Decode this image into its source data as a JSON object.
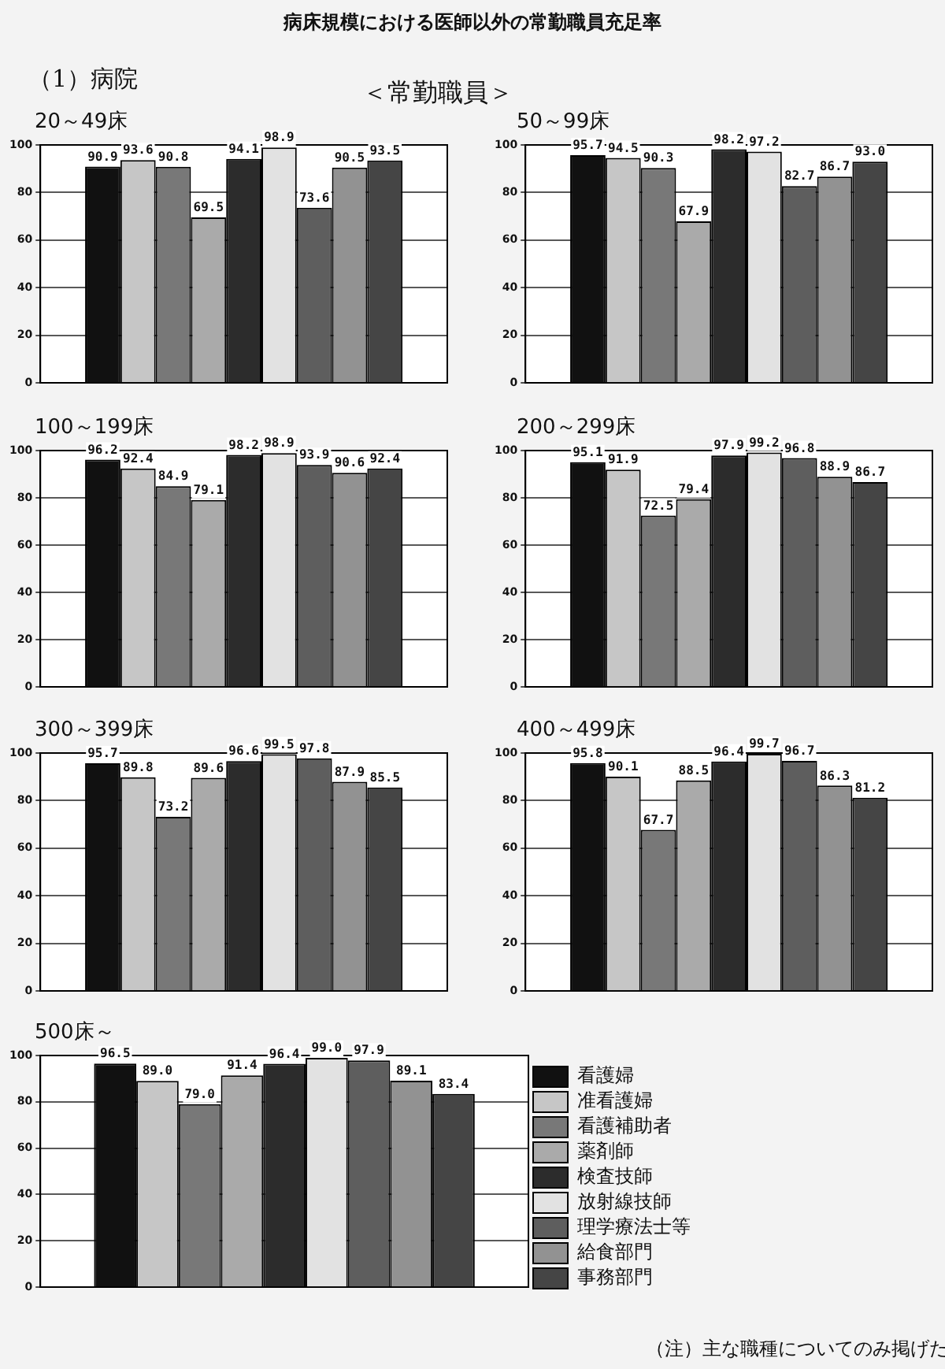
{
  "chart_data": [
    {
      "type": "other",
      "title": "病床規模における医師以外の常勤職員充足率",
      "subtitle": "＜常勤職員＞",
      "annotations": [
        "（1）病院"
      ]
    },
    {
      "type": "bar",
      "title": "20～49床",
      "categories": [
        null
      ],
      "ylim": [
        0,
        100
      ],
      "yticks": [
        0,
        20,
        40,
        60,
        80,
        100
      ],
      "grid": "y",
      "tick_labels": "y",
      "series": [
        {
          "color": "#111111",
          "values": [
            90.9
          ],
          "value_labels": [
            "90.9"
          ]
        },
        {
          "color": "#c6c6c6",
          "values": [
            93.6
          ],
          "value_labels": [
            "93.6"
          ]
        },
        {
          "color": "#787878",
          "values": [
            90.8
          ],
          "value_labels": [
            "90.8"
          ]
        },
        {
          "color": "#aaaaaa",
          "values": [
            69.5
          ],
          "value_labels": [
            "69.5"
          ]
        },
        {
          "color": "#2c2c2c",
          "values": [
            94.1
          ],
          "value_labels": [
            "94.1"
          ]
        },
        {
          "color": "#e2e2e2",
          "values": [
            98.9
          ],
          "value_labels": [
            "98.9"
          ]
        },
        {
          "color": "#5e5e5e",
          "values": [
            73.6
          ],
          "value_labels": [
            "73.6"
          ]
        },
        {
          "color": "#929292",
          "values": [
            90.5
          ],
          "value_labels": [
            "90.5"
          ]
        },
        {
          "color": "#454545",
          "values": [
            93.5
          ],
          "value_labels": [
            "93.5"
          ]
        }
      ]
    },
    {
      "type": "bar",
      "title": "50～99床",
      "categories": [
        null
      ],
      "ylim": [
        0,
        100
      ],
      "yticks": [
        0,
        20,
        40,
        60,
        80,
        100
      ],
      "grid": "y",
      "tick_labels": "y",
      "series": [
        {
          "color": "#111111",
          "values": [
            95.7
          ],
          "value_labels": [
            "95.7"
          ]
        },
        {
          "color": "#c6c6c6",
          "values": [
            94.5
          ],
          "value_labels": [
            "94.5"
          ]
        },
        {
          "color": "#787878",
          "values": [
            90.3
          ],
          "value_labels": [
            "90.3"
          ]
        },
        {
          "color": "#aaaaaa",
          "values": [
            67.9
          ],
          "value_labels": [
            "67.9"
          ]
        },
        {
          "color": "#2c2c2c",
          "values": [
            98.2
          ],
          "value_labels": [
            "98.2"
          ]
        },
        {
          "color": "#e2e2e2",
          "values": [
            97.2
          ],
          "value_labels": [
            "97.2"
          ]
        },
        {
          "color": "#5e5e5e",
          "values": [
            82.7
          ],
          "value_labels": [
            "82.7"
          ]
        },
        {
          "color": "#929292",
          "values": [
            86.7
          ],
          "value_labels": [
            "86.7"
          ]
        },
        {
          "color": "#454545",
          "values": [
            93.0
          ],
          "value_labels": [
            "93.0"
          ]
        }
      ]
    },
    {
      "type": "bar",
      "title": "100～199床",
      "categories": [
        null
      ],
      "ylim": [
        0,
        100
      ],
      "yticks": [
        0,
        20,
        40,
        60,
        80,
        100
      ],
      "grid": "y",
      "tick_labels": "y",
      "series": [
        {
          "color": "#111111",
          "values": [
            96.2
          ],
          "value_labels": [
            "96.2"
          ]
        },
        {
          "color": "#c6c6c6",
          "values": [
            92.4
          ],
          "value_labels": [
            "92.4"
          ]
        },
        {
          "color": "#787878",
          "values": [
            84.9
          ],
          "value_labels": [
            "84.9"
          ]
        },
        {
          "color": "#aaaaaa",
          "values": [
            79.1
          ],
          "value_labels": [
            "79.1"
          ]
        },
        {
          "color": "#2c2c2c",
          "values": [
            98.2
          ],
          "value_labels": [
            "98.2"
          ]
        },
        {
          "color": "#e2e2e2",
          "values": [
            98.9
          ],
          "value_labels": [
            "98.9"
          ]
        },
        {
          "color": "#5e5e5e",
          "values": [
            93.9
          ],
          "value_labels": [
            "93.9"
          ]
        },
        {
          "color": "#929292",
          "values": [
            90.6
          ],
          "value_labels": [
            "90.6"
          ]
        },
        {
          "color": "#454545",
          "values": [
            92.4
          ],
          "value_labels": [
            "92.4"
          ]
        }
      ]
    },
    {
      "type": "bar",
      "title": "200～299床",
      "categories": [
        null
      ],
      "ylim": [
        0,
        100
      ],
      "yticks": [
        0,
        20,
        40,
        60,
        80,
        100
      ],
      "grid": "y",
      "tick_labels": "y",
      "series": [
        {
          "color": "#111111",
          "values": [
            95.1
          ],
          "value_labels": [
            "95.1"
          ]
        },
        {
          "color": "#c6c6c6",
          "values": [
            91.9
          ],
          "value_labels": [
            "91.9"
          ]
        },
        {
          "color": "#787878",
          "values": [
            72.5
          ],
          "value_labels": [
            "72.5"
          ]
        },
        {
          "color": "#aaaaaa",
          "values": [
            79.4
          ],
          "value_labels": [
            "79.4"
          ]
        },
        {
          "color": "#2c2c2c",
          "values": [
            97.9
          ],
          "value_labels": [
            "97.9"
          ]
        },
        {
          "color": "#e2e2e2",
          "values": [
            99.2
          ],
          "value_labels": [
            "99.2"
          ]
        },
        {
          "color": "#5e5e5e",
          "values": [
            96.8
          ],
          "value_labels": [
            "96.8"
          ]
        },
        {
          "color": "#929292",
          "values": [
            88.9
          ],
          "value_labels": [
            "88.9"
          ]
        },
        {
          "color": "#454545",
          "values": [
            86.7
          ],
          "value_labels": [
            "86.7"
          ]
        }
      ]
    },
    {
      "type": "bar",
      "title": "300～399床",
      "categories": [
        null
      ],
      "ylim": [
        0,
        100
      ],
      "yticks": [
        0,
        20,
        40,
        60,
        80,
        100
      ],
      "grid": "y",
      "tick_labels": "y",
      "series": [
        {
          "color": "#111111",
          "values": [
            95.7
          ],
          "value_labels": [
            "95.7"
          ]
        },
        {
          "color": "#c6c6c6",
          "values": [
            89.8
          ],
          "value_labels": [
            "89.8"
          ]
        },
        {
          "color": "#787878",
          "values": [
            73.2
          ],
          "value_labels": [
            "73.2"
          ]
        },
        {
          "color": "#aaaaaa",
          "values": [
            89.6
          ],
          "value_labels": [
            "89.6"
          ]
        },
        {
          "color": "#2c2c2c",
          "values": [
            96.6
          ],
          "value_labels": [
            "96.6"
          ]
        },
        {
          "color": "#e2e2e2",
          "values": [
            99.5
          ],
          "value_labels": [
            "99.5"
          ]
        },
        {
          "color": "#5e5e5e",
          "values": [
            97.8
          ],
          "value_labels": [
            "97.8"
          ]
        },
        {
          "color": "#929292",
          "values": [
            87.9
          ],
          "value_labels": [
            "87.9"
          ]
        },
        {
          "color": "#454545",
          "values": [
            85.5
          ],
          "value_labels": [
            "85.5"
          ]
        }
      ]
    },
    {
      "type": "bar",
      "title": "400～499床",
      "categories": [
        null
      ],
      "ylim": [
        0,
        100
      ],
      "yticks": [
        0,
        20,
        40,
        60,
        80,
        100
      ],
      "grid": "y",
      "tick_labels": "y",
      "series": [
        {
          "color": "#111111",
          "values": [
            95.8
          ],
          "value_labels": [
            "95.8"
          ]
        },
        {
          "color": "#c6c6c6",
          "values": [
            90.1
          ],
          "value_labels": [
            "90.1"
          ]
        },
        {
          "color": "#787878",
          "values": [
            67.7
          ],
          "value_labels": [
            "67.7"
          ]
        },
        {
          "color": "#aaaaaa",
          "values": [
            88.5
          ],
          "value_labels": [
            "88.5"
          ]
        },
        {
          "color": "#2c2c2c",
          "values": [
            96.4
          ],
          "value_labels": [
            "96.4"
          ]
        },
        {
          "color": "#e2e2e2",
          "values": [
            99.7
          ],
          "value_labels": [
            "99.7"
          ]
        },
        {
          "color": "#5e5e5e",
          "values": [
            96.7
          ],
          "value_labels": [
            "96.7"
          ]
        },
        {
          "color": "#929292",
          "values": [
            86.3
          ],
          "value_labels": [
            "86.3"
          ]
        },
        {
          "color": "#454545",
          "values": [
            81.2
          ],
          "value_labels": [
            "81.2"
          ]
        }
      ]
    },
    {
      "type": "bar",
      "title": "500床～",
      "categories": [
        null
      ],
      "ylim": [
        0,
        100
      ],
      "yticks": [
        0,
        20,
        40,
        60,
        80,
        100
      ],
      "grid": "y",
      "tick_labels": "y",
      "legend": "right",
      "annotations": [
        "（注）主な職種についてのみ掲げた"
      ],
      "series": [
        {
          "name": "看護婦",
          "color": "#111111",
          "values": [
            96.5
          ],
          "value_labels": [
            "96.5"
          ]
        },
        {
          "name": "准看護婦",
          "color": "#c6c6c6",
          "values": [
            89.0
          ],
          "value_labels": [
            "89.0"
          ]
        },
        {
          "name": "看護補助者",
          "color": "#787878",
          "values": [
            79.0
          ],
          "value_labels": [
            "79.0"
          ]
        },
        {
          "name": "薬剤師",
          "color": "#aaaaaa",
          "values": [
            91.4
          ],
          "value_labels": [
            "91.4"
          ]
        },
        {
          "name": "検査技師",
          "color": "#2c2c2c",
          "values": [
            96.4
          ],
          "value_labels": [
            "96.4"
          ]
        },
        {
          "name": "放射線技師",
          "color": "#e2e2e2",
          "values": [
            99.0
          ],
          "value_labels": [
            "99.0"
          ]
        },
        {
          "name": "理学療法士等",
          "color": "#5e5e5e",
          "values": [
            97.9
          ],
          "value_labels": [
            "97.9"
          ]
        },
        {
          "name": "給食部門",
          "color": "#929292",
          "values": [
            89.1
          ],
          "value_labels": [
            "89.1"
          ]
        },
        {
          "name": "事務部門",
          "color": "#454545",
          "values": [
            83.4
          ],
          "value_labels": [
            "83.4"
          ]
        }
      ]
    }
  ]
}
